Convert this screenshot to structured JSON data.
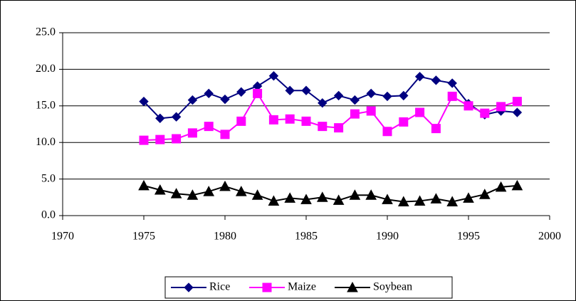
{
  "chart_data": {
    "type": "line",
    "x": [
      1975,
      1976,
      1977,
      1978,
      1979,
      1980,
      1981,
      1982,
      1983,
      1984,
      1985,
      1986,
      1987,
      1988,
      1989,
      1990,
      1991,
      1992,
      1993,
      1994,
      1995,
      1996,
      1997,
      1998
    ],
    "series": [
      {
        "name": "Rice",
        "color": "#000080",
        "marker": "diamond",
        "values": [
          15.6,
          13.3,
          13.5,
          15.8,
          16.7,
          15.9,
          16.9,
          17.7,
          19.1,
          17.1,
          17.1,
          15.4,
          16.4,
          15.8,
          16.7,
          16.3,
          16.4,
          19.0,
          18.5,
          18.1,
          15.3,
          13.8,
          14.3,
          14.1
        ]
      },
      {
        "name": "Maize",
        "color": "#ff00ff",
        "marker": "square",
        "values": [
          10.3,
          10.4,
          10.5,
          11.3,
          12.2,
          11.1,
          12.9,
          16.7,
          13.1,
          13.2,
          12.9,
          12.2,
          12.0,
          13.9,
          14.3,
          11.5,
          12.8,
          14.1,
          11.9,
          16.3,
          15.0,
          14.0,
          14.9,
          15.6
        ]
      },
      {
        "name": "Soybean",
        "color": "#000000",
        "marker": "triangle",
        "values": [
          4.1,
          3.5,
          3.0,
          2.8,
          3.3,
          4.0,
          3.3,
          2.8,
          2.0,
          2.4,
          2.2,
          2.5,
          2.1,
          2.8,
          2.8,
          2.2,
          1.9,
          2.0,
          2.3,
          1.9,
          2.4,
          2.9,
          3.9,
          4.1
        ]
      }
    ],
    "xlim": [
      1970,
      2000
    ],
    "xticks": [
      1970,
      1975,
      1980,
      1985,
      1990,
      1995,
      2000
    ],
    "ylim": [
      0,
      25
    ],
    "yticks": [
      {
        "value": 0,
        "label": "0.0"
      },
      {
        "value": 5,
        "label": "5.0"
      },
      {
        "value": 10,
        "label": "10.0"
      },
      {
        "value": 15,
        "label": "15.0"
      },
      {
        "value": 20,
        "label": "20.0"
      },
      {
        "value": 25,
        "label": "25.0"
      }
    ],
    "grid": true,
    "legend": "bottom"
  }
}
